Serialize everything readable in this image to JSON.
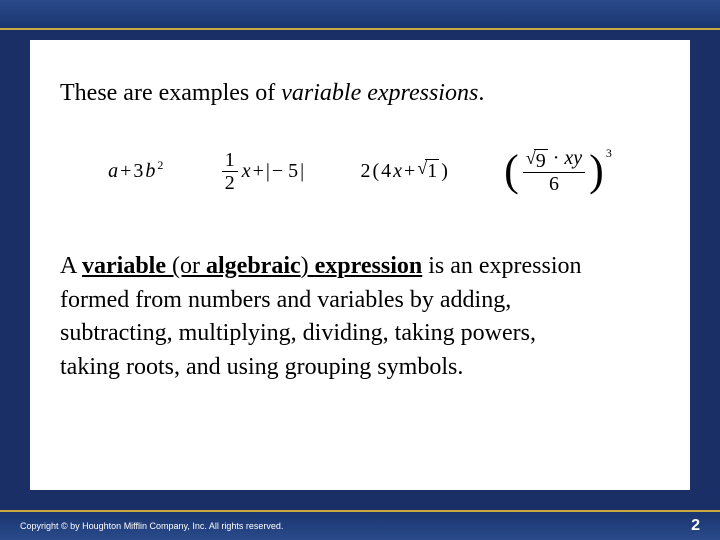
{
  "colors": {
    "slide_bg": "#1a2f66",
    "bar_top": "#2a4a8a",
    "bar_bottom": "#1a3570",
    "accent": "#c9a940",
    "content_bg": "#ffffff",
    "text": "#000000",
    "footer_text": "#ffffff"
  },
  "intro": {
    "prefix": "These are examples of ",
    "emph": "variable expressions",
    "suffix": "."
  },
  "math": {
    "expr1": {
      "a": "a",
      "plus": " + ",
      "three": "3",
      "b": "b",
      "exp": "2"
    },
    "expr2": {
      "num": "1",
      "den": "2",
      "x": "x",
      "plus": " + ",
      "lbar": "|",
      "neg5": "− 5",
      "rbar": "|"
    },
    "expr3": {
      "two": "2",
      "lpar": "(",
      "four": "4",
      "x": "x",
      "plus": " + ",
      "root_arg": "1",
      "rpar": ")"
    },
    "expr4": {
      "root_arg": "9",
      "dot": " · ",
      "x": "x",
      "y": "y",
      "den": "6",
      "exp": "3"
    }
  },
  "def": {
    "l1a": "A ",
    "l1b": "variable",
    "l1c": " (or ",
    "l1d": "algebraic",
    "l1e": ") ",
    "l1f": "expression",
    "l1g": " is an expression",
    "l2": "formed from numbers and variables by adding,",
    "l3": "subtracting, multiplying, dividing, taking powers,",
    "l4": "taking roots, and using grouping symbols."
  },
  "footer": {
    "copyright": "Copyright © by Houghton Mifflin Company, Inc. All rights reserved.",
    "page": "2"
  }
}
